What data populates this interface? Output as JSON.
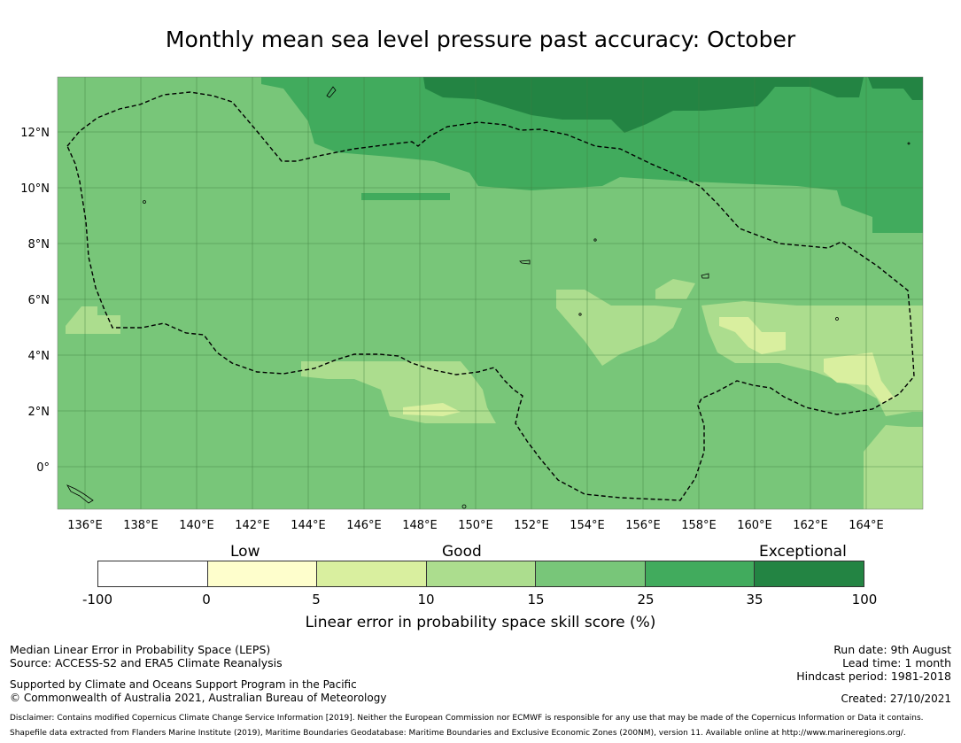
{
  "title": "Monthly mean sea level pressure past accuracy: October",
  "map": {
    "lat_labels": [
      "12°N",
      "10°N",
      "8°N",
      "6°N",
      "4°N",
      "2°N",
      "0°"
    ],
    "lon_labels": [
      "136°E",
      "138°E",
      "140°E",
      "142°E",
      "144°E",
      "146°E",
      "148°E",
      "150°E",
      "152°E",
      "154°E",
      "156°E",
      "158°E",
      "160°E",
      "162°E",
      "164°E"
    ],
    "lat_range": [
      -1.5,
      14.0
    ],
    "lon_range": [
      135.0,
      166.0
    ],
    "grid": true,
    "boundary": "dashed black outline (EEZ)"
  },
  "legend": {
    "categories": [
      "Low",
      "Good",
      "Exceptional"
    ],
    "ticks": [
      "-100",
      "0",
      "5",
      "10",
      "15",
      "25",
      "35",
      "100"
    ],
    "colors": [
      "#ffffff",
      "#fefecc",
      "#d9ef9f",
      "#acdd8e",
      "#78c679",
      "#41ab5d",
      "#238443"
    ],
    "label": "Linear error in probability space skill score (%)"
  },
  "footer": {
    "left_line1": "Median Linear Error in Probability Space (LEPS)",
    "left_line2": "Source: ACCESS-S2 and ERA5 Climate Reanalysis",
    "left_line3": "Supported by Climate and Oceans Support Program in the Pacific",
    "left_line4": "© Commonwealth of Australia 2021, Australian Bureau of Meteorology",
    "right_line1": "Run date: 9th August",
    "right_line2": "Lead time: 1 month",
    "right_line3": "Hindcast period: 1981-2018",
    "right_line4": "Created: 27/10/2021",
    "disclaimer1": "Disclaimer: Contains modified Copernicus Climate Change Service Information [2019]. Neither the European Commission nor ECMWF is responsible for any use that may be made of the Copernicus Information or Data it contains.",
    "disclaimer2": "Shapefile data extracted from Flanders Marine Institute (2019), Maritime Boundaries Geodatabase: Maritime Boundaries and Exclusive Economic Zones (200NM), version 11. Available online at http://www.marineregions.org/."
  }
}
